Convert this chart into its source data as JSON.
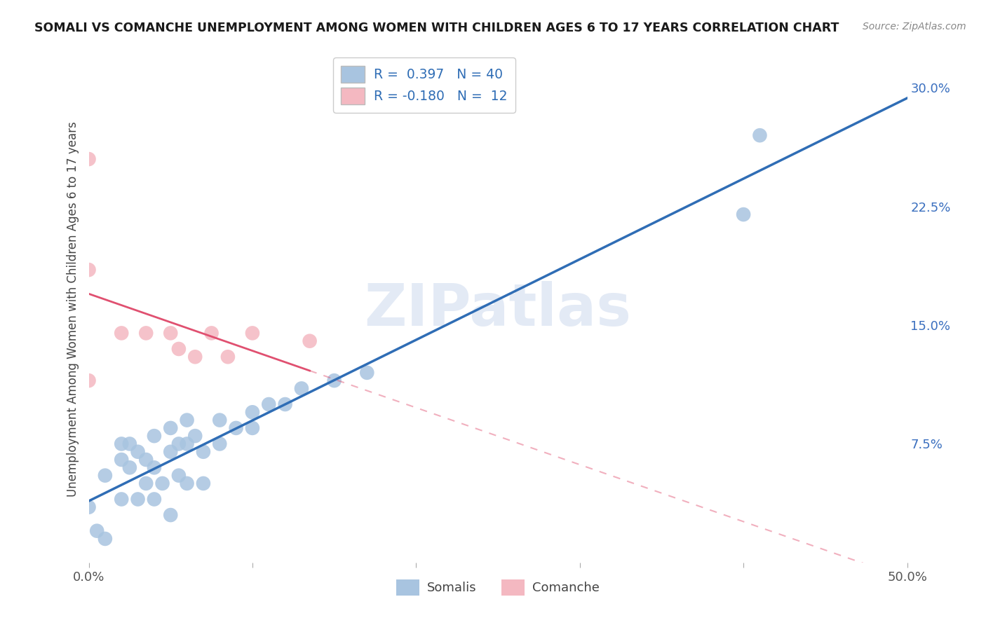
{
  "title": "SOMALI VS COMANCHE UNEMPLOYMENT AMONG WOMEN WITH CHILDREN AGES 6 TO 17 YEARS CORRELATION CHART",
  "source": "Source: ZipAtlas.com",
  "ylabel": "Unemployment Among Women with Children Ages 6 to 17 years",
  "xlim": [
    0.0,
    0.5
  ],
  "ylim": [
    0.0,
    0.32
  ],
  "xticks": [
    0.0,
    0.1,
    0.2,
    0.3,
    0.4,
    0.5
  ],
  "xticklabels": [
    "0.0%",
    "",
    "",
    "",
    "",
    "50.0%"
  ],
  "yticks_right": [
    0.075,
    0.15,
    0.225,
    0.3
  ],
  "yticklabels_right": [
    "7.5%",
    "15.0%",
    "22.5%",
    "30.0%"
  ],
  "grid_color": "#c8c8c8",
  "background_color": "#ffffff",
  "somali_color": "#a8c4e0",
  "comanche_color": "#f4b8c1",
  "somali_line_color": "#2f6db5",
  "comanche_line_color": "#e05070",
  "somali_R": 0.397,
  "somali_N": 40,
  "comanche_R": -0.18,
  "comanche_N": 12,
  "somali_x": [
    0.0,
    0.005,
    0.01,
    0.01,
    0.02,
    0.02,
    0.02,
    0.025,
    0.025,
    0.03,
    0.03,
    0.035,
    0.035,
    0.04,
    0.04,
    0.04,
    0.045,
    0.05,
    0.05,
    0.05,
    0.055,
    0.055,
    0.06,
    0.06,
    0.06,
    0.065,
    0.07,
    0.07,
    0.08,
    0.08,
    0.09,
    0.1,
    0.1,
    0.11,
    0.12,
    0.13,
    0.15,
    0.17,
    0.4,
    0.41
  ],
  "somali_y": [
    0.035,
    0.02,
    0.015,
    0.055,
    0.04,
    0.065,
    0.075,
    0.06,
    0.075,
    0.04,
    0.07,
    0.05,
    0.065,
    0.04,
    0.06,
    0.08,
    0.05,
    0.03,
    0.07,
    0.085,
    0.055,
    0.075,
    0.05,
    0.075,
    0.09,
    0.08,
    0.05,
    0.07,
    0.075,
    0.09,
    0.085,
    0.085,
    0.095,
    0.1,
    0.1,
    0.11,
    0.115,
    0.12,
    0.22,
    0.27
  ],
  "comanche_x": [
    0.0,
    0.0,
    0.0,
    0.02,
    0.035,
    0.05,
    0.055,
    0.065,
    0.075,
    0.085,
    0.1,
    0.135
  ],
  "comanche_y": [
    0.255,
    0.185,
    0.115,
    0.145,
    0.145,
    0.145,
    0.135,
    0.13,
    0.145,
    0.13,
    0.145,
    0.14
  ],
  "legend_R_label1": "R =  0.397   N = 40",
  "legend_R_label2": "R = -0.180   N =  12",
  "legend_somalis": "Somalis",
  "legend_comanche": "Comanche"
}
